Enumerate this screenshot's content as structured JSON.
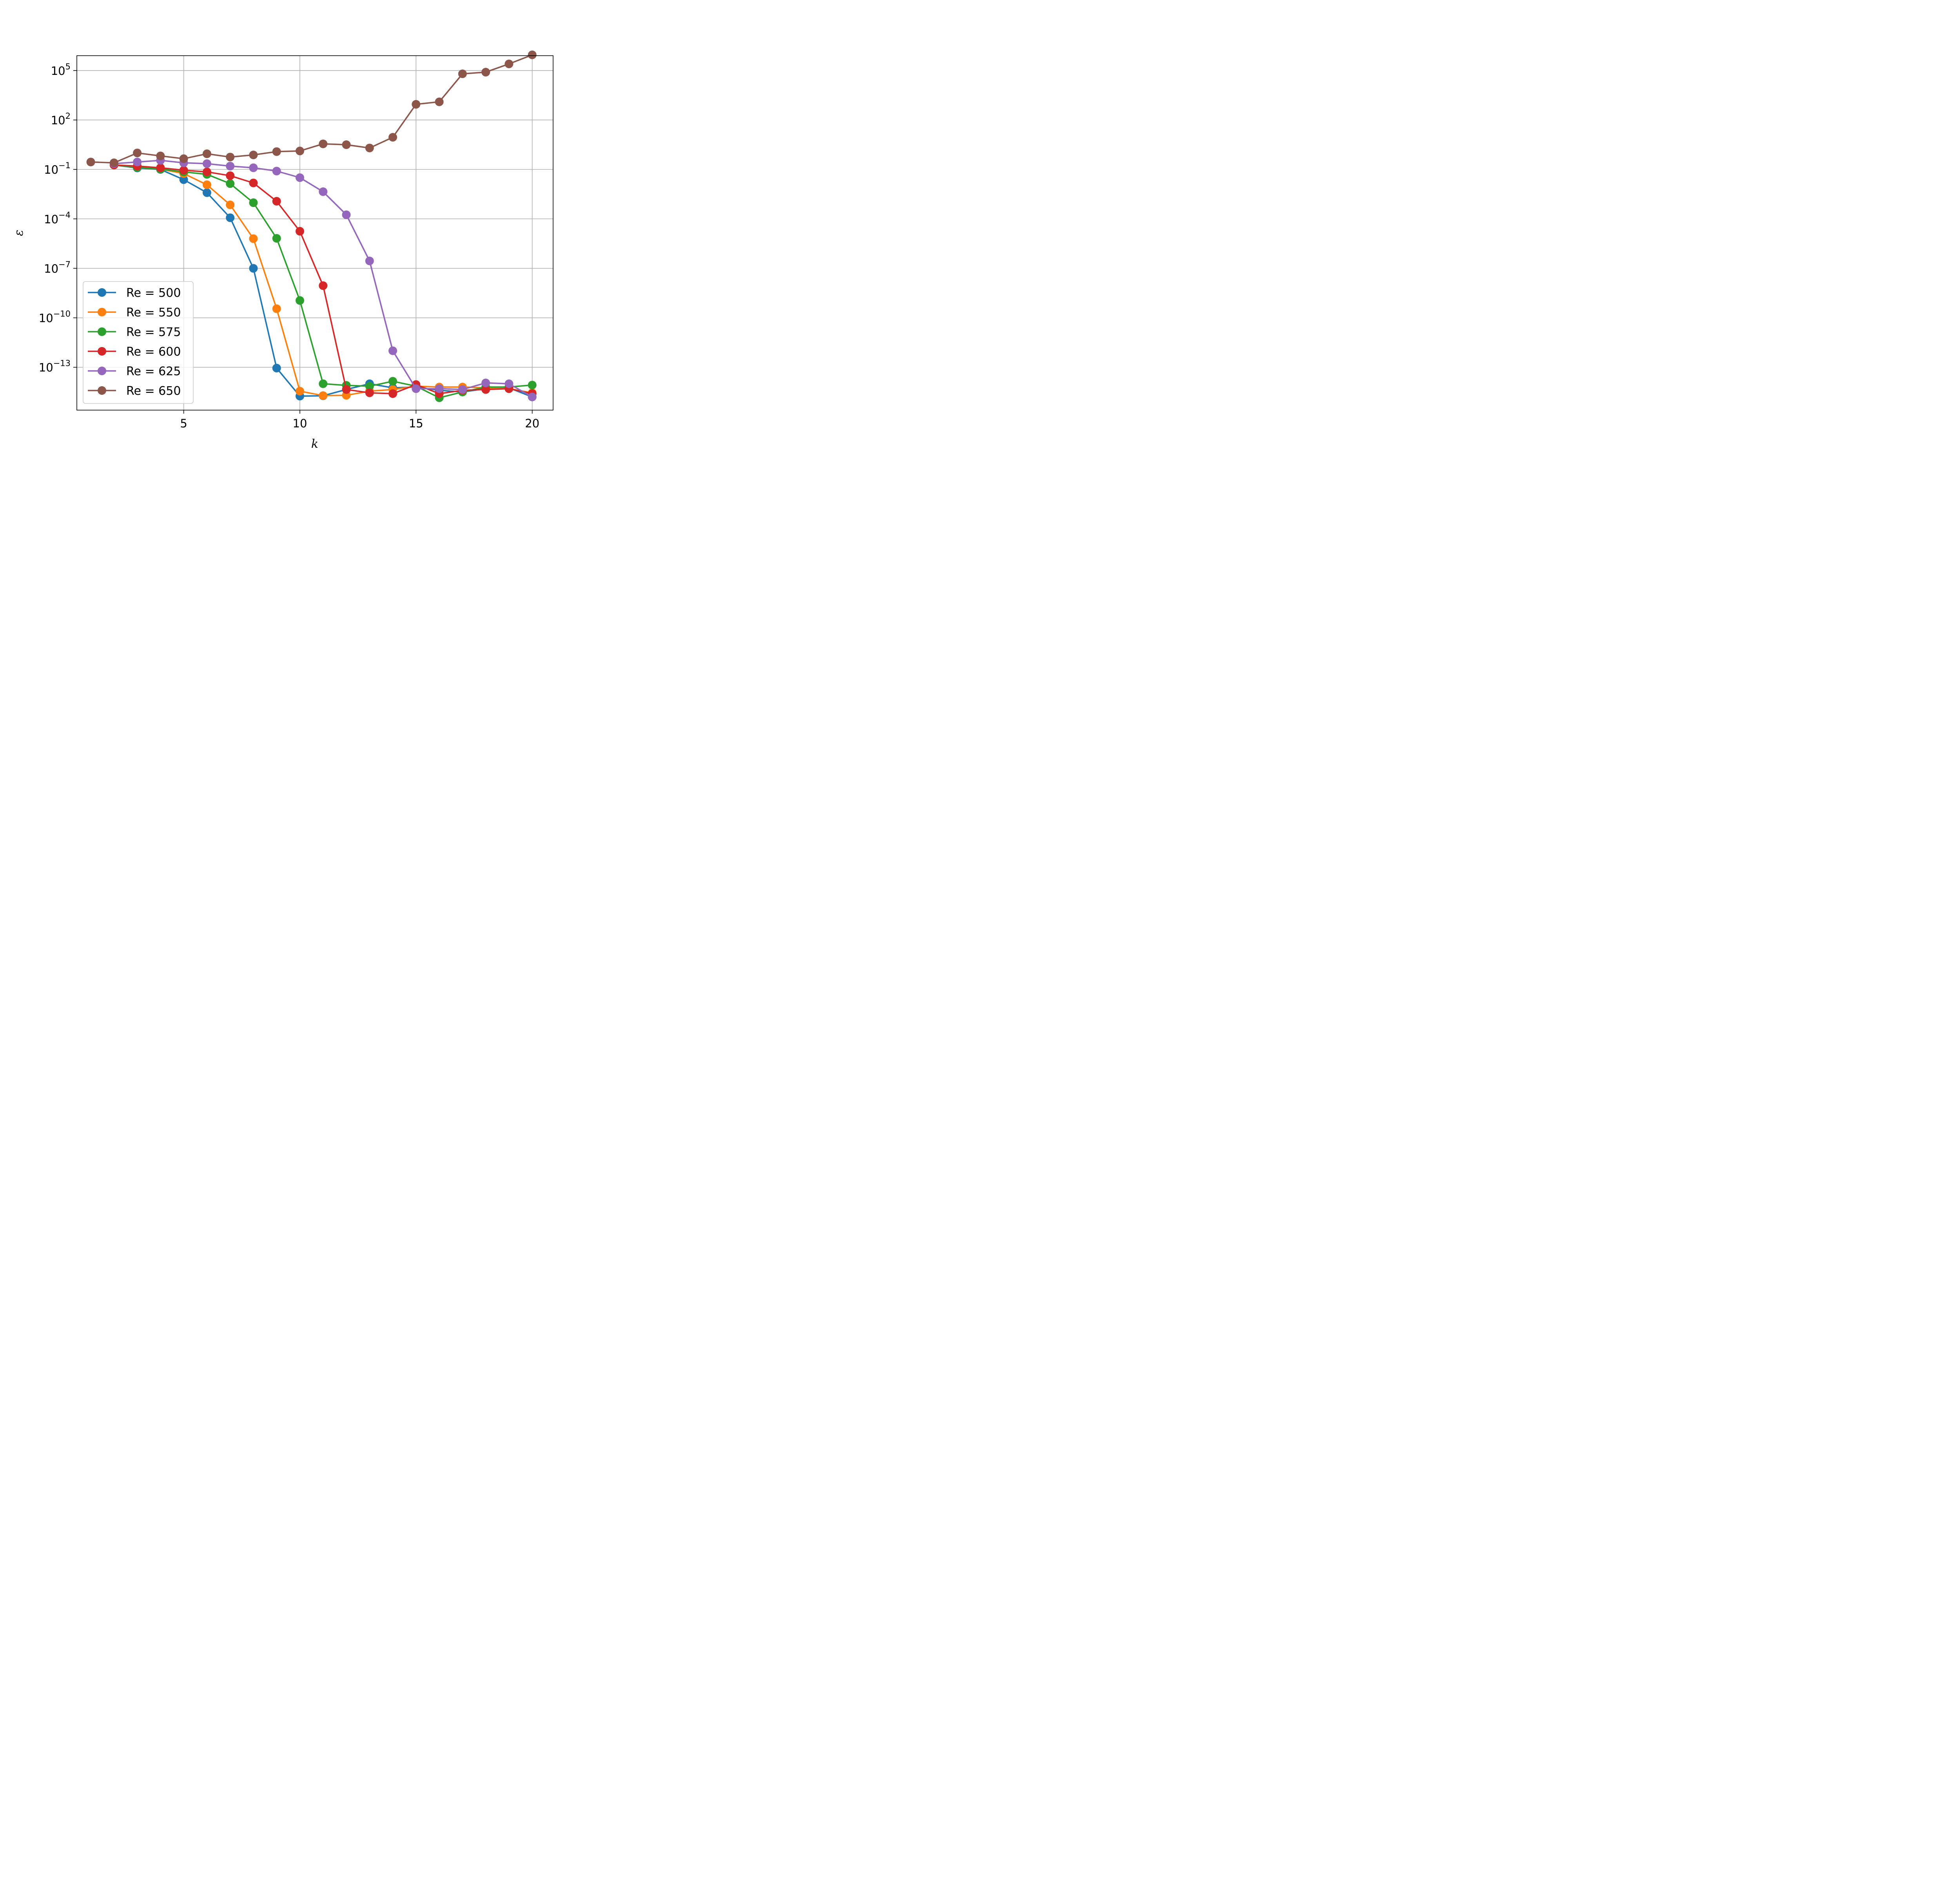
{
  "chart_data": {
    "type": "line",
    "title": "",
    "xlabel": "k",
    "ylabel": "ε",
    "yscale": "log",
    "xlim": [
      0.4,
      20.9
    ],
    "ylim_exp": [
      -15.6,
      5.9
    ],
    "grid": true,
    "legend_placement": "lower-left",
    "x_ticks": [
      5,
      10,
      15,
      20
    ],
    "x_tick_labels": [
      "5",
      "10",
      "15",
      "20"
    ],
    "y_ticks_exp": [
      5,
      2,
      -1,
      -4,
      -7,
      -10,
      -13
    ],
    "y_tick_labels": [
      {
        "base": "10",
        "exp": "5"
      },
      {
        "base": "10",
        "exp": "2"
      },
      {
        "base": "10",
        "exp": "−1"
      },
      {
        "base": "10",
        "exp": "−4"
      },
      {
        "base": "10",
        "exp": "−7"
      },
      {
        "base": "10",
        "exp": "−10"
      },
      {
        "base": "10",
        "exp": "−13"
      }
    ],
    "series": [
      {
        "name": "Re = 500",
        "color": "#1f77b4",
        "x": [
          2,
          3,
          4,
          5,
          6,
          7,
          8,
          9,
          10,
          11,
          12,
          13,
          14,
          15,
          16,
          17,
          18,
          19,
          20
        ],
        "log10_y": [
          -0.73,
          -0.91,
          -1.0,
          -1.62,
          -2.41,
          -3.93,
          -7.0,
          -13.05,
          -14.75,
          -14.73,
          -14.35,
          -14.0,
          -14.25,
          -14.2,
          -14.4,
          -14.5,
          -14.3,
          -14.25,
          -14.8
        ]
      },
      {
        "name": "Re = 550",
        "color": "#ff7f0e",
        "x": [
          2,
          3,
          4,
          5,
          6,
          7,
          8,
          9,
          10,
          11,
          12,
          13,
          14,
          15,
          16,
          17,
          18,
          19,
          20
        ],
        "log10_y": [
          -0.73,
          -0.88,
          -0.98,
          -1.25,
          -1.93,
          -3.15,
          -5.2,
          -9.45,
          -14.45,
          -14.72,
          -14.7,
          -14.45,
          -14.35,
          -14.15,
          -14.2,
          -14.2,
          -14.25,
          -14.3,
          -14.55
        ]
      },
      {
        "name": "Re = 575",
        "color": "#2ca02c",
        "x": [
          2,
          3,
          4,
          5,
          6,
          7,
          8,
          9,
          10,
          11,
          12,
          13,
          14,
          15,
          16,
          17,
          18,
          19,
          20
        ],
        "log10_y": [
          -0.73,
          -0.88,
          -0.98,
          -1.15,
          -1.3,
          -1.86,
          -3.02,
          -5.18,
          -8.95,
          -14.0,
          -14.1,
          -14.15,
          -13.85,
          -14.15,
          -14.85,
          -14.5,
          -14.2,
          -14.2,
          -14.08
        ]
      },
      {
        "name": "Re = 600",
        "color": "#d62728",
        "x": [
          2,
          3,
          4,
          5,
          6,
          7,
          8,
          9,
          10,
          11,
          12,
          13,
          14,
          15,
          16,
          17,
          18,
          19,
          20
        ],
        "log10_y": [
          -0.73,
          -0.8,
          -0.9,
          -1.05,
          -1.15,
          -1.38,
          -1.82,
          -2.93,
          -4.75,
          -8.05,
          -14.35,
          -14.55,
          -14.6,
          -14.05,
          -14.6,
          -14.4,
          -14.35,
          -14.3,
          -14.6
        ]
      },
      {
        "name": "Re = 625",
        "color": "#9467bd",
        "x": [
          2,
          3,
          4,
          5,
          6,
          7,
          8,
          9,
          10,
          11,
          12,
          13,
          14,
          15,
          16,
          17,
          18,
          19,
          20
        ],
        "log10_y": [
          -0.65,
          -0.55,
          -0.45,
          -0.6,
          -0.65,
          -0.8,
          -0.9,
          -1.1,
          -1.5,
          -2.35,
          -3.75,
          -6.55,
          -12.0,
          -14.3,
          -14.3,
          -14.35,
          -13.95,
          -14.0,
          -14.8
        ]
      },
      {
        "name": "Re = 650",
        "color": "#8c564b",
        "x": [
          1,
          2,
          3,
          4,
          5,
          6,
          7,
          8,
          9,
          10,
          11,
          12,
          13,
          14,
          15,
          16,
          17,
          18,
          19,
          20
        ],
        "log10_y": [
          -0.55,
          -0.6,
          0.0,
          -0.18,
          -0.35,
          -0.05,
          -0.25,
          -0.12,
          0.08,
          0.12,
          0.55,
          0.5,
          0.3,
          0.95,
          2.95,
          3.1,
          4.8,
          4.9,
          5.4,
          5.95
        ]
      }
    ]
  }
}
